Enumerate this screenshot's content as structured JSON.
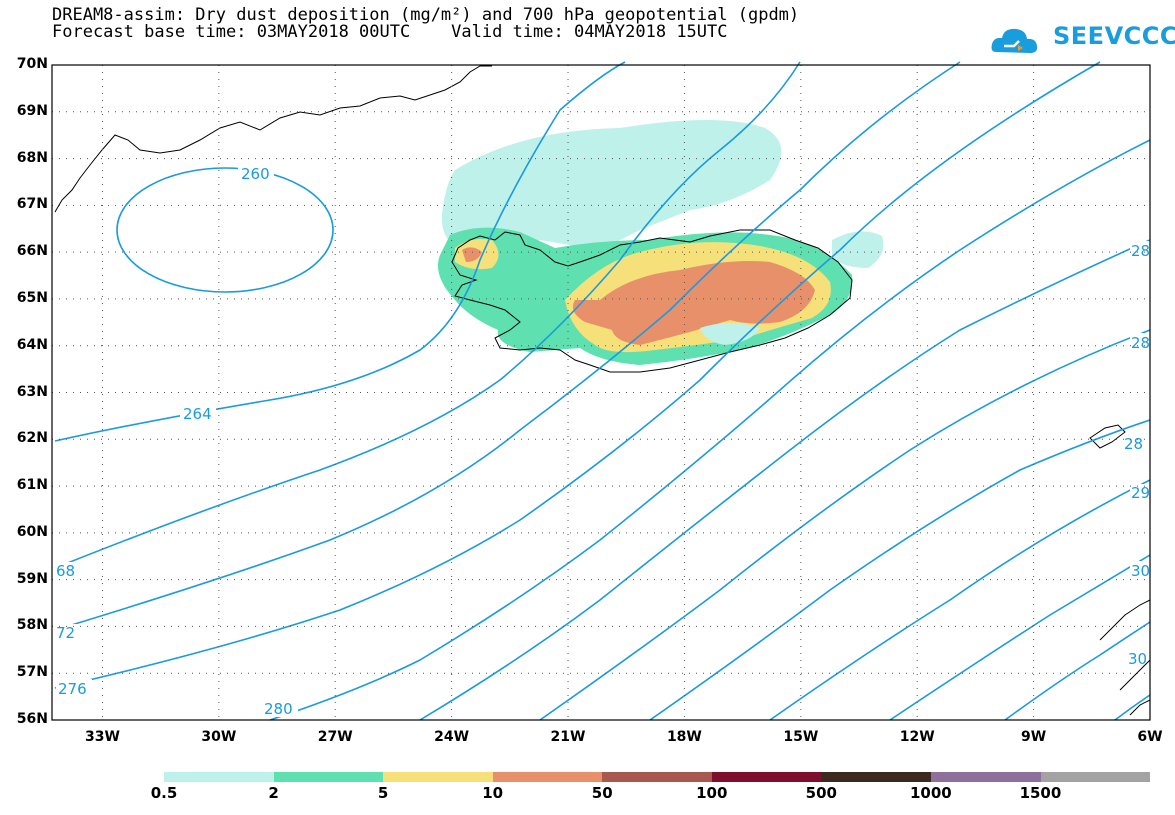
{
  "header": {
    "title_line1": "DREAM8-assim: Dry dust deposition (mg/m²) and 700 hPa geopotential (gpdm)",
    "title_line2": "Forecast base time: 03MAY2018 00UTC    Valid time: 04MAY2018 15UTC"
  },
  "logo": {
    "text": "SEEVCCC",
    "color": "#1a9ddc"
  },
  "map": {
    "lat_range": [
      56,
      70
    ],
    "lon_range": [
      -34.3,
      -6
    ],
    "lat_labels": [
      "70N",
      "69N",
      "68N",
      "67N",
      "66N",
      "65N",
      "64N",
      "63N",
      "62N",
      "61N",
      "60N",
      "59N",
      "58N",
      "57N",
      "56N"
    ],
    "lon_labels": [
      "33W",
      "30W",
      "27W",
      "24W",
      "21W",
      "18W",
      "15W",
      "12W",
      "9W",
      "6W"
    ],
    "contour_color": "#1a9ae0",
    "contour_labels": [
      "260",
      "264",
      "68",
      "72",
      "276",
      "280",
      "28",
      "28",
      "28",
      "29",
      "30",
      "30"
    ]
  },
  "legend": {
    "colors": [
      "#bdf1ea",
      "#5ee0b0",
      "#f6e07a",
      "#e8906a",
      "#a8584f",
      "#7e0f2c",
      "#3c2a1e",
      "#8f6f9c",
      "#a3a3a3"
    ],
    "labels": [
      "0.5",
      "2",
      "5",
      "10",
      "50",
      "100",
      "500",
      "1000",
      "1500"
    ]
  }
}
